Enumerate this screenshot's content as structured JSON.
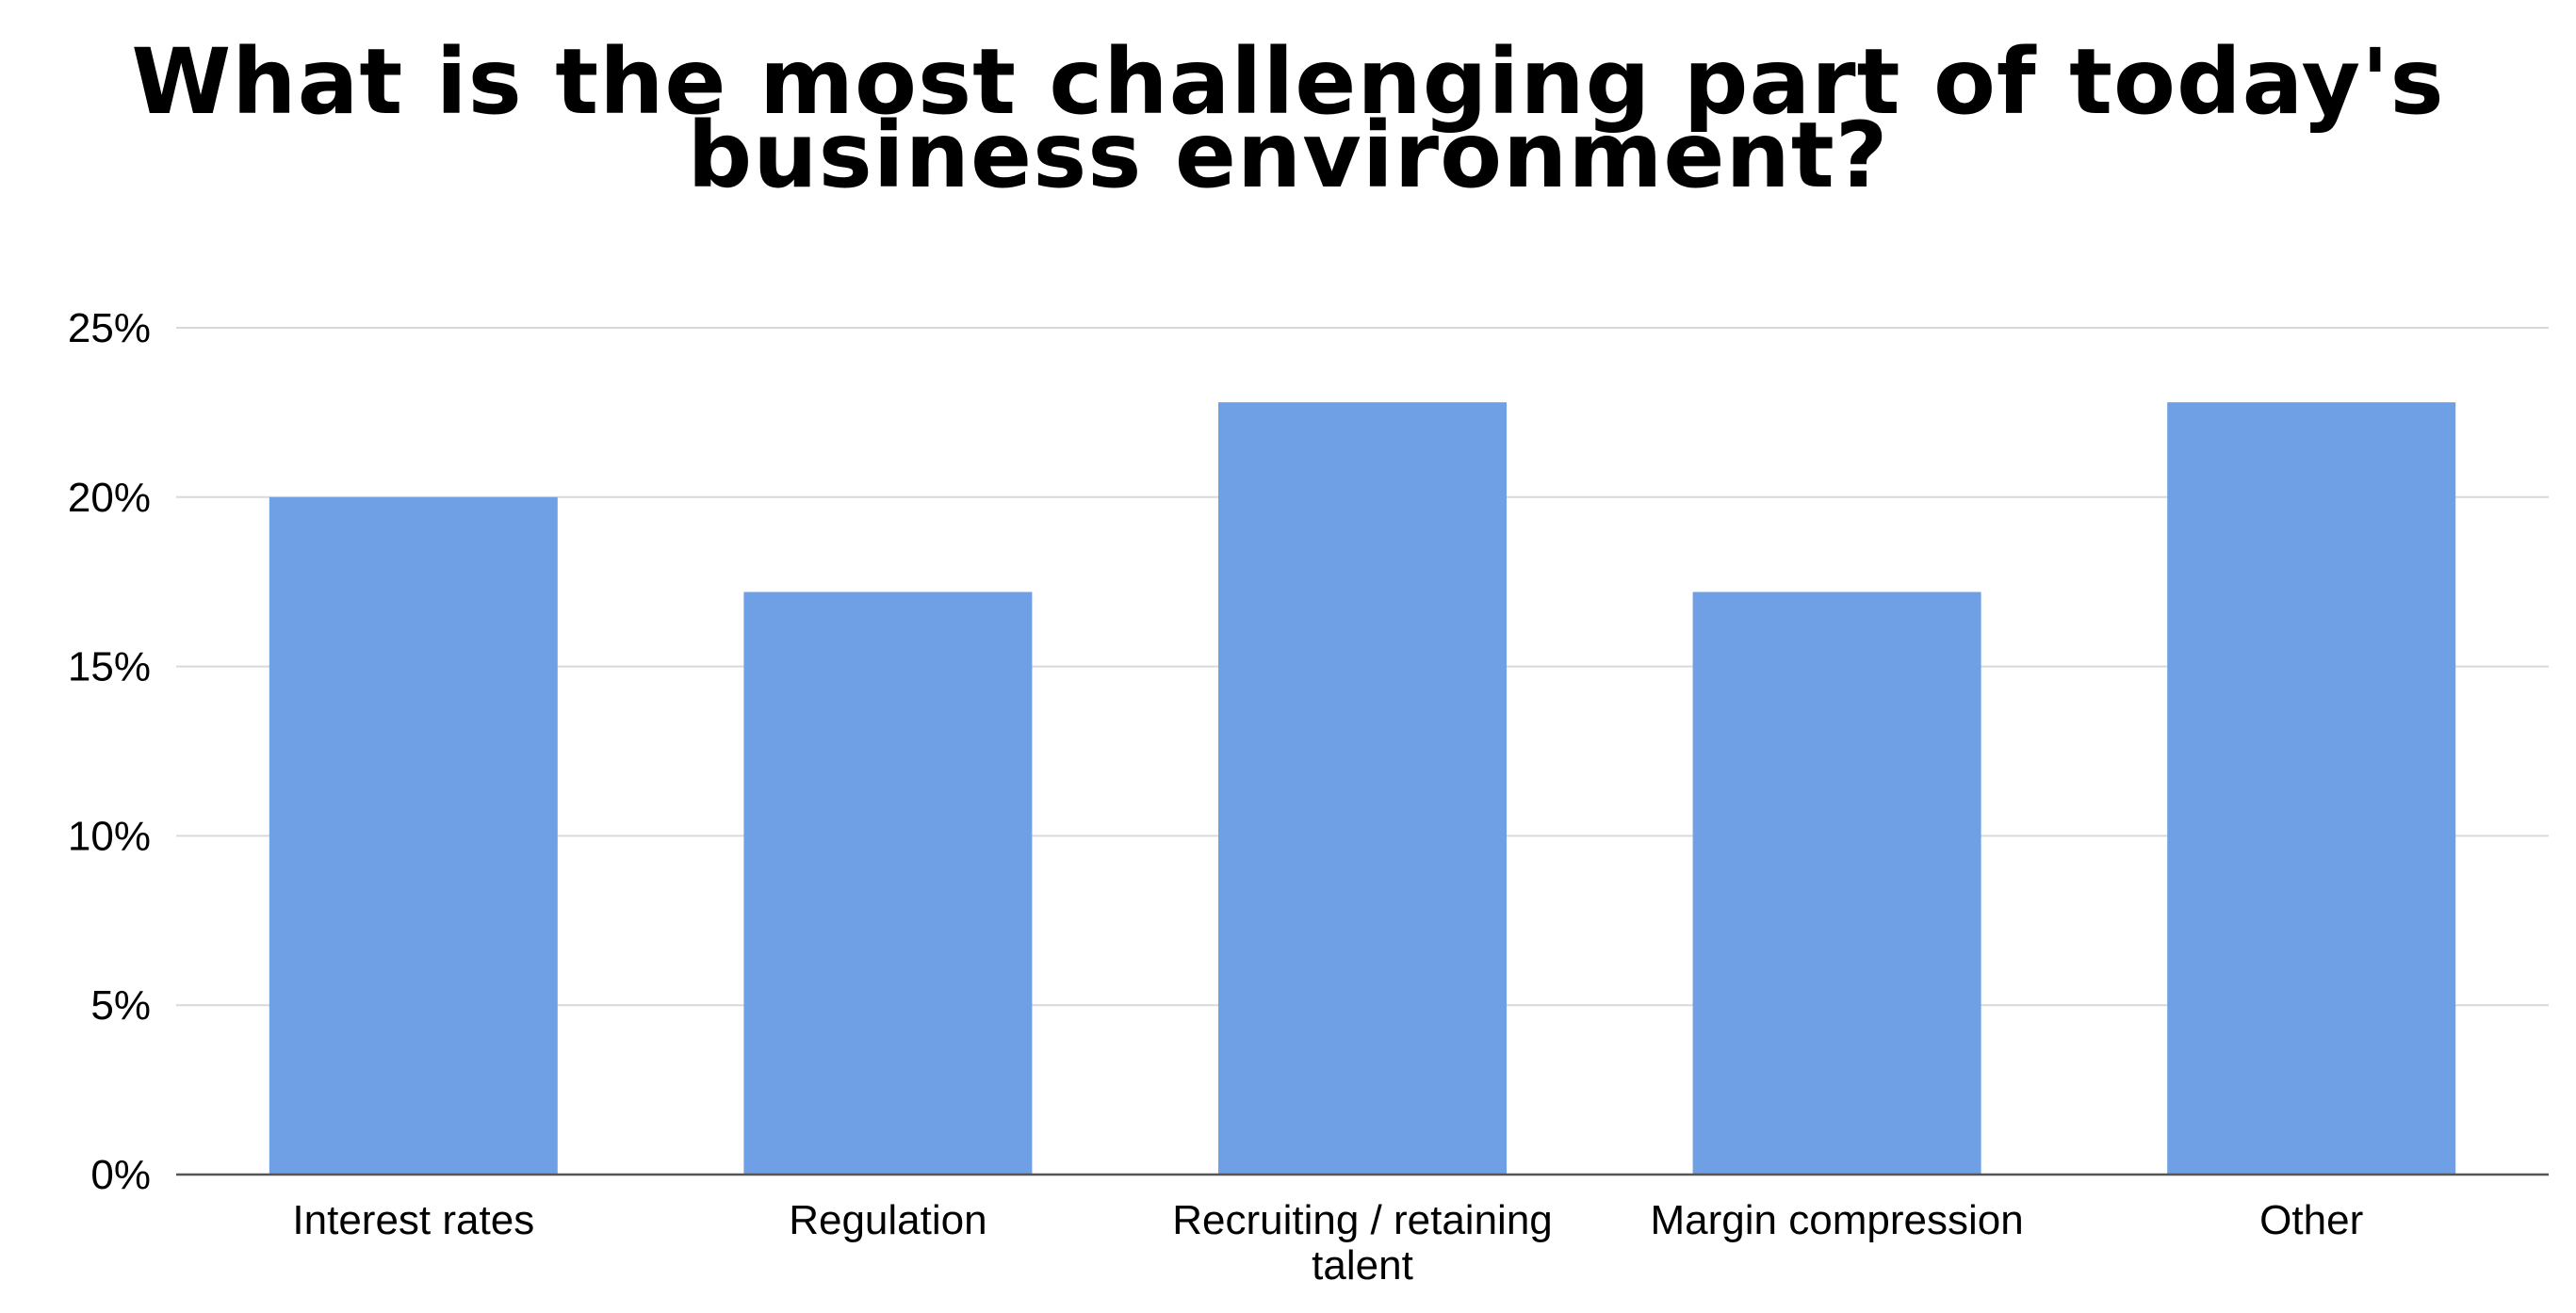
{
  "chart_data": {
    "type": "bar",
    "title_lines": [
      "What is the most challenging part of today's",
      "business environment?"
    ],
    "title": "What is the most challenging part of today's business environment?",
    "categories": [
      [
        "Interest rates"
      ],
      [
        "Regulation"
      ],
      [
        "Recruiting / retaining",
        "talent"
      ],
      [
        "Margin compression"
      ],
      [
        "Other"
      ]
    ],
    "category_names": [
      "Interest rates",
      "Regulation",
      "Recruiting / retaining talent",
      "Margin compression",
      "Other"
    ],
    "values": [
      20.0,
      17.2,
      22.8,
      17.2,
      22.8
    ],
    "ylim": [
      0,
      25
    ],
    "yticks": [
      0,
      5,
      10,
      15,
      20,
      25
    ],
    "ytick_labels": [
      "0%",
      "5%",
      "10%",
      "15%",
      "20%",
      "25%"
    ],
    "xlabel": "",
    "ylabel": "",
    "grid": true,
    "legend": "none",
    "colors": {
      "bar": "#6fa0e5",
      "grid": "#d9d9d9",
      "axis": "#555555"
    }
  }
}
